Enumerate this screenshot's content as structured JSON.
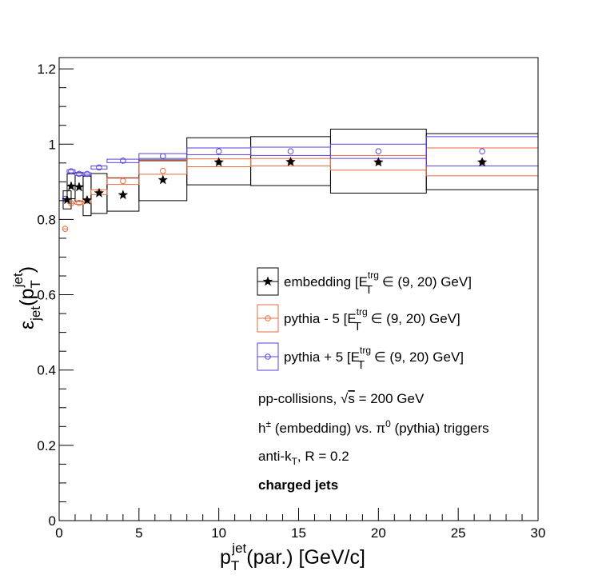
{
  "chart_data": {
    "type": "scatter",
    "xlim": [
      0,
      30
    ],
    "ylim": [
      0,
      1.23
    ],
    "x_major_ticks": [
      0,
      5,
      10,
      15,
      20,
      25,
      30
    ],
    "y_major_ticks": [
      0,
      0.2,
      0.4,
      0.6,
      0.8,
      1,
      1.2
    ],
    "x_tick_labels": [
      "0",
      "5",
      "10",
      "15",
      "20",
      "25",
      "30"
    ],
    "y_tick_labels": [
      "0",
      "0.2",
      "0.4",
      "0.6",
      "0.8",
      "1",
      "1.2"
    ],
    "xlabel": {
      "base": "p",
      "sub": "T",
      "sup": "jet",
      "rest": "(par.) [GeV/c]"
    },
    "ylabel": {
      "base": "ε",
      "sub": "jet",
      "open": "(p",
      "sub2": "T",
      "sup2": "jet",
      "close": ")"
    },
    "series": [
      {
        "key": "embedding",
        "color": "#000000",
        "marker": "star",
        "legend": {
          "pre": "embedding [E",
          "sup": "trg",
          "sub": "T",
          "post": " ∈ (9, 20) GeV]"
        },
        "points": [
          {
            "x": 0.5,
            "y": 0.852,
            "xlo": 0.25,
            "xhi": 0.75,
            "syslo": 0.828,
            "syshi": 0.876
          },
          {
            "x": 0.75,
            "y": 0.888,
            "xlo": 0.5,
            "xhi": 1.0,
            "syslo": 0.855,
            "syshi": 0.921
          },
          {
            "x": 1.25,
            "y": 0.886,
            "xlo": 1.0,
            "xhi": 1.5,
            "syslo": 0.849,
            "syshi": 0.924
          },
          {
            "x": 1.75,
            "y": 0.851,
            "xlo": 1.5,
            "xhi": 2.0,
            "syslo": 0.81,
            "syshi": 0.915
          },
          {
            "x": 2.5,
            "y": 0.87,
            "xlo": 2.0,
            "xhi": 3.0,
            "syslo": 0.816,
            "syshi": 0.922
          },
          {
            "x": 4.0,
            "y": 0.865,
            "xlo": 3.0,
            "xhi": 5.0,
            "syslo": 0.822,
            "syshi": 0.91
          },
          {
            "x": 6.5,
            "y": 0.905,
            "xlo": 5.0,
            "xhi": 8.0,
            "syslo": 0.85,
            "syshi": 0.958
          },
          {
            "x": 10.0,
            "y": 0.952,
            "xlo": 8.0,
            "xhi": 12.0,
            "syslo": 0.892,
            "syshi": 1.017
          },
          {
            "x": 14.5,
            "y": 0.953,
            "xlo": 12.0,
            "xhi": 17.0,
            "syslo": 0.89,
            "syshi": 1.02
          },
          {
            "x": 20.0,
            "y": 0.952,
            "xlo": 17.0,
            "xhi": 23.0,
            "syslo": 0.87,
            "syshi": 1.04
          },
          {
            "x": 26.5,
            "y": 0.952,
            "xlo": 23.0,
            "xhi": 30.0,
            "syslo": 0.879,
            "syshi": 1.028
          }
        ]
      },
      {
        "key": "pythia-minus-5",
        "color": "#e8693e",
        "marker": "circle",
        "legend": {
          "pre": "pythia - 5 [E",
          "sup": "trg",
          "sub": "T",
          "post": " ∈ (9, 20) GeV]"
        },
        "points": [
          {
            "x": 0.375,
            "y": 0.775,
            "xlo": 0.25,
            "xhi": 0.5,
            "syslo": 0.775,
            "syshi": 0.775
          },
          {
            "x": 0.75,
            "y": 0.843,
            "xlo": 0.5,
            "xhi": 1.0,
            "syslo": 0.843,
            "syshi": 0.843
          },
          {
            "x": 1.25,
            "y": 0.844,
            "xlo": 1.0,
            "xhi": 1.5,
            "syslo": 0.84,
            "syshi": 0.848
          },
          {
            "x": 1.75,
            "y": 0.85,
            "xlo": 1.5,
            "xhi": 2.0,
            "syslo": 0.845,
            "syshi": 0.855
          },
          {
            "x": 2.5,
            "y": 0.873,
            "xlo": 2.0,
            "xhi": 3.0,
            "syslo": 0.866,
            "syshi": 0.879
          },
          {
            "x": 4.0,
            "y": 0.902,
            "xlo": 3.0,
            "xhi": 5.0,
            "syslo": 0.893,
            "syshi": 0.911
          },
          {
            "x": 6.5,
            "y": 0.929,
            "xlo": 5.0,
            "xhi": 8.0,
            "syslo": 0.92,
            "syshi": 0.955
          },
          {
            "x": 10.0,
            "y": 0.952,
            "xlo": 8.0,
            "xhi": 12.0,
            "syslo": 0.94,
            "syshi": 0.961
          },
          {
            "x": 14.5,
            "y": 0.953,
            "xlo": 12.0,
            "xhi": 17.0,
            "syslo": 0.942,
            "syshi": 0.962
          },
          {
            "x": 20.0,
            "y": 0.952,
            "xlo": 17.0,
            "xhi": 23.0,
            "syslo": 0.931,
            "syshi": 0.97
          },
          {
            "x": 26.5,
            "y": 0.952,
            "xlo": 23.0,
            "xhi": 30.0,
            "syslo": 0.916,
            "syshi": 0.99
          }
        ]
      },
      {
        "key": "pythia-plus-5",
        "color": "#5b3fe0",
        "marker": "circle",
        "legend": {
          "pre": "pythia + 5 [E",
          "sup": "trg",
          "sub": "T",
          "post": " ∈ (9, 20) GeV]"
        },
        "points": [
          {
            "x": 0.375,
            "y": 0.855,
            "xlo": 0.25,
            "xhi": 0.5,
            "syslo": 0.855,
            "syshi": 0.855
          },
          {
            "x": 0.75,
            "y": 0.928,
            "xlo": 0.5,
            "xhi": 1.0,
            "syslo": 0.924,
            "syshi": 0.932
          },
          {
            "x": 1.25,
            "y": 0.921,
            "xlo": 1.0,
            "xhi": 1.5,
            "syslo": 0.917,
            "syshi": 0.925
          },
          {
            "x": 1.75,
            "y": 0.921,
            "xlo": 1.5,
            "xhi": 2.0,
            "syslo": 0.918,
            "syshi": 0.924
          },
          {
            "x": 2.5,
            "y": 0.938,
            "xlo": 2.0,
            "xhi": 3.0,
            "syslo": 0.934,
            "syshi": 0.942
          },
          {
            "x": 4.0,
            "y": 0.956,
            "xlo": 3.0,
            "xhi": 5.0,
            "syslo": 0.951,
            "syshi": 0.96
          },
          {
            "x": 6.5,
            "y": 0.968,
            "xlo": 5.0,
            "xhi": 8.0,
            "syslo": 0.962,
            "syshi": 0.975
          },
          {
            "x": 10.0,
            "y": 0.981,
            "xlo": 8.0,
            "xhi": 12.0,
            "syslo": 0.972,
            "syshi": 0.99
          },
          {
            "x": 14.5,
            "y": 0.981,
            "xlo": 12.0,
            "xhi": 17.0,
            "syslo": 0.97,
            "syshi": 0.992
          },
          {
            "x": 20.0,
            "y": 0.981,
            "xlo": 17.0,
            "xhi": 23.0,
            "syslo": 0.962,
            "syshi": 1.0
          },
          {
            "x": 26.5,
            "y": 0.981,
            "xlo": 23.0,
            "xhi": 30.0,
            "syslo": 0.942,
            "syshi": 1.02
          }
        ]
      }
    ],
    "legend_placement": "center-right",
    "annotations": [
      {
        "key": "collisions",
        "parts": [
          {
            "t": "pp-collisions, "
          },
          {
            "t": "s",
            "sqrt": true
          },
          {
            "t": " = 200 GeV"
          }
        ]
      },
      {
        "key": "triggers",
        "parts": [
          {
            "t": "h"
          },
          {
            "t": "±",
            "sup": true
          },
          {
            "t": " (embedding) vs. π"
          },
          {
            "t": "0",
            "sup": true
          },
          {
            "t": " (pythia) triggers"
          }
        ]
      },
      {
        "key": "algorithm",
        "parts": [
          {
            "t": "anti-k"
          },
          {
            "t": "T",
            "sub": true
          },
          {
            "t": ", R = 0.2"
          }
        ]
      },
      {
        "key": "jet-type",
        "parts": [
          {
            "t": "charged jets",
            "bold": true
          }
        ]
      }
    ]
  }
}
